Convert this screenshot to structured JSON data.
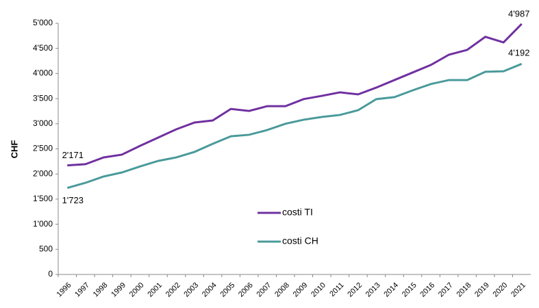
{
  "chart_data": {
    "type": "line",
    "y_label": "CHF",
    "categories": [
      "1996",
      "1997",
      "1998",
      "1999",
      "2000",
      "2001",
      "2002",
      "2003",
      "2004",
      "2005",
      "2006",
      "2007",
      "2008",
      "2009",
      "2010",
      "2011",
      "2012",
      "2013",
      "2014",
      "2015",
      "2016",
      "2017",
      "2018",
      "2019",
      "2020",
      "2021"
    ],
    "series": [
      {
        "name": "costi TI",
        "color": "#7030a0",
        "values": [
          2171,
          2195,
          2330,
          2385,
          2560,
          2725,
          2890,
          3025,
          3065,
          3295,
          3255,
          3350,
          3350,
          3490,
          3555,
          3625,
          3585,
          3720,
          3870,
          4020,
          4170,
          4375,
          4470,
          4730,
          4620,
          4987
        ],
        "value_labels": [
          "2'171",
          null,
          null,
          null,
          null,
          null,
          null,
          null,
          null,
          null,
          null,
          null,
          null,
          null,
          null,
          null,
          null,
          null,
          null,
          null,
          null,
          null,
          null,
          null,
          null,
          "4'987"
        ]
      },
      {
        "name": "costi CH",
        "color": "#4a9a9a",
        "values": [
          1723,
          1825,
          1950,
          2030,
          2150,
          2260,
          2330,
          2440,
          2600,
          2750,
          2780,
          2875,
          3000,
          3080,
          3135,
          3175,
          3270,
          3490,
          3530,
          3665,
          3790,
          3870,
          3870,
          4035,
          4045,
          4192
        ],
        "value_labels": [
          "1'723",
          null,
          null,
          null,
          null,
          null,
          null,
          null,
          null,
          null,
          null,
          null,
          null,
          null,
          null,
          null,
          null,
          null,
          null,
          null,
          null,
          null,
          null,
          null,
          null,
          "4'192"
        ]
      }
    ],
    "ylim": [
      0,
      5000
    ],
    "yticks": [
      0,
      500,
      {
        "value": 1000,
        "label": "1'000"
      },
      {
        "value": 1500,
        "label": "1'500"
      },
      {
        "value": 2000,
        "label": "2'000"
      },
      {
        "value": 2500,
        "label": "2'500"
      },
      {
        "value": 3000,
        "label": "3'000"
      },
      {
        "value": 3500,
        "label": "3'500"
      },
      {
        "value": 4000,
        "label": "4'000"
      },
      {
        "value": 4500,
        "label": "4'500"
      },
      {
        "value": 5000,
        "label": "5'000"
      }
    ],
    "grid": false,
    "legend": "center"
  }
}
